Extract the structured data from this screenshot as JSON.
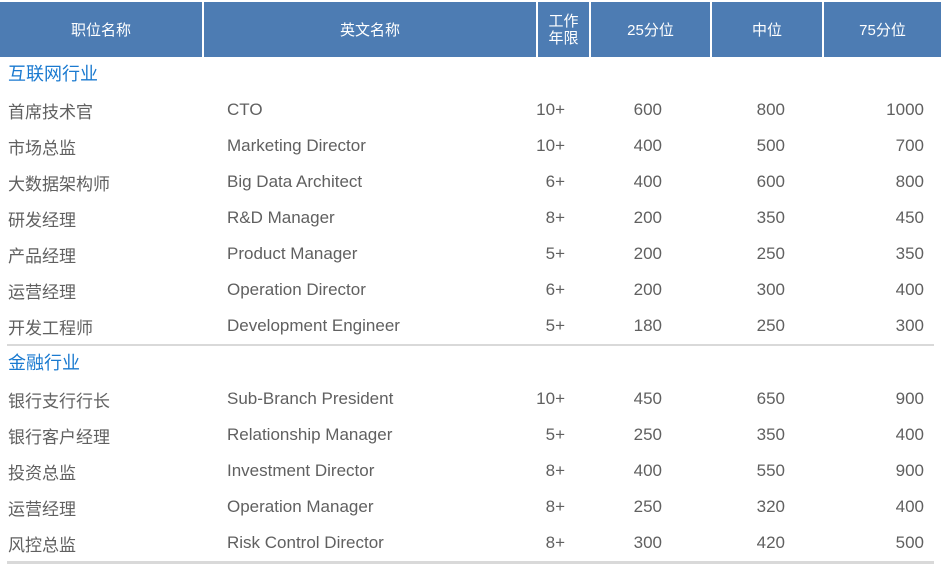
{
  "colors": {
    "header_bg": "#4d7cb3",
    "header_text": "#ffffff",
    "section_title_text": "#1a7ad0",
    "body_text": "#606060",
    "divider": "#d9d9d9"
  },
  "table": {
    "columns": [
      {
        "label": "职位名称"
      },
      {
        "label": "英文名称"
      },
      {
        "label": "工作年限"
      },
      {
        "label": "25分位"
      },
      {
        "label": "中位"
      },
      {
        "label": "75分位"
      }
    ],
    "sections": [
      {
        "title": "互联网行业",
        "rows": [
          {
            "cn": "首席技术官",
            "en": "CTO",
            "years": "10+",
            "p25": "600",
            "p50": "800",
            "p75": "1000"
          },
          {
            "cn": "市场总监",
            "en": "Marketing Director",
            "years": "10+",
            "p25": "400",
            "p50": "500",
            "p75": "700"
          },
          {
            "cn": "大数据架构师",
            "en": "Big Data Architect",
            "years": "6+",
            "p25": "400",
            "p50": "600",
            "p75": "800"
          },
          {
            "cn": "研发经理",
            "en": "R&D Manager",
            "years": "8+",
            "p25": "200",
            "p50": "350",
            "p75": "450"
          },
          {
            "cn": "产品经理",
            "en": "Product Manager",
            "years": "5+",
            "p25": "200",
            "p50": "250",
            "p75": "350"
          },
          {
            "cn": "运营经理",
            "en": "Operation Director",
            "years": "6+",
            "p25": "200",
            "p50": "300",
            "p75": "400"
          },
          {
            "cn": "开发工程师",
            "en": "Development Engineer",
            "years": "5+",
            "p25": "180",
            "p50": "250",
            "p75": "300"
          }
        ]
      },
      {
        "title": "金融行业",
        "rows": [
          {
            "cn": "银行支行行长",
            "en": "Sub-Branch President",
            "years": "10+",
            "p25": "450",
            "p50": "650",
            "p75": "900"
          },
          {
            "cn": "银行客户经理",
            "en": "Relationship Manager",
            "years": "5+",
            "p25": "250",
            "p50": "350",
            "p75": "400"
          },
          {
            "cn": "投资总监",
            "en": "Investment Director",
            "years": "8+",
            "p25": "400",
            "p50": "550",
            "p75": "900"
          },
          {
            "cn": "运营经理",
            "en": "Operation Manager",
            "years": "8+",
            "p25": "250",
            "p50": "320",
            "p75": "400"
          },
          {
            "cn": "风控总监",
            "en": "Risk Control Director",
            "years": "8+",
            "p25": "300",
            "p50": "420",
            "p75": "500"
          }
        ]
      }
    ]
  }
}
